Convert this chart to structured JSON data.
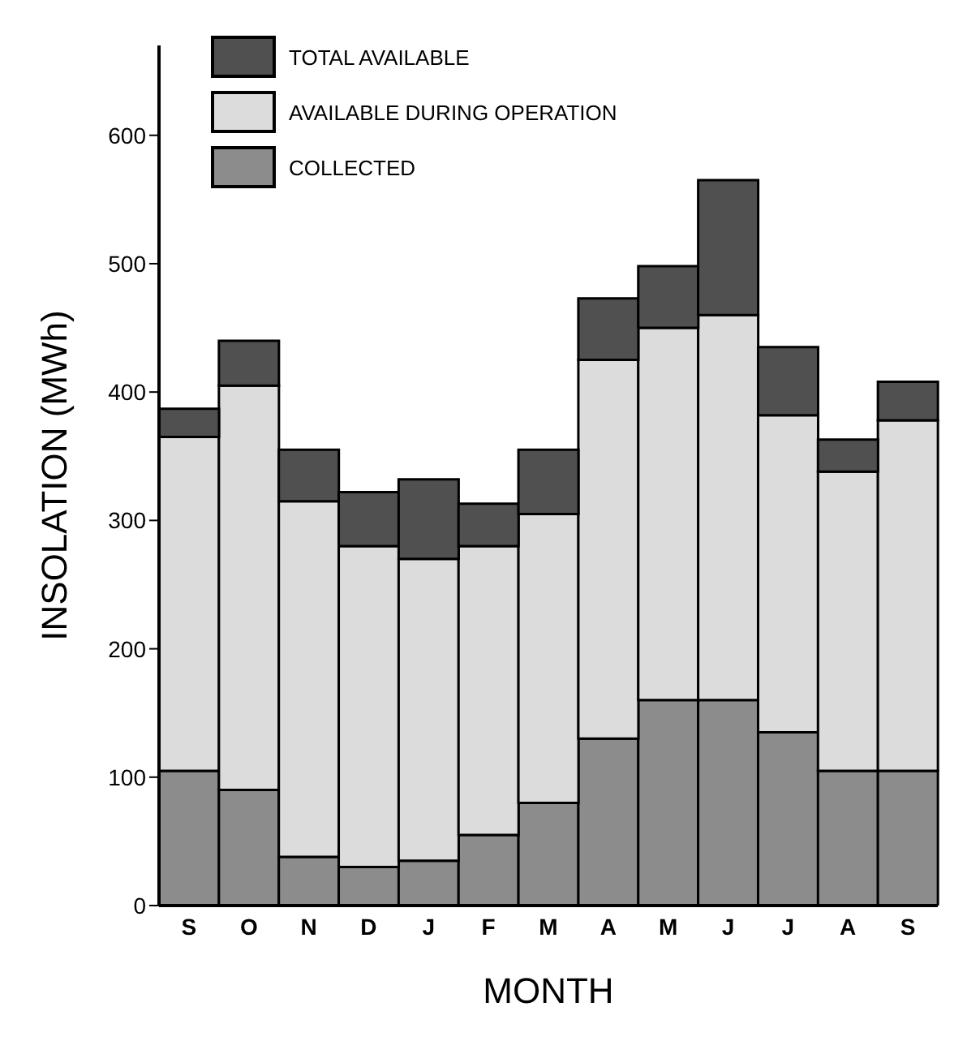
{
  "chart_data": {
    "type": "bar",
    "stacked": true,
    "xlabel": "MONTH",
    "ylabel": "INSOLATION (MWh)",
    "categories": [
      "S",
      "O",
      "N",
      "D",
      "J",
      "F",
      "M",
      "A",
      "M",
      "J",
      "J",
      "A",
      "S"
    ],
    "series": [
      {
        "name": "COLLECTED",
        "color": "#8c8c8c",
        "values": [
          105,
          90,
          38,
          30,
          35,
          55,
          80,
          130,
          160,
          160,
          135,
          105,
          105
        ]
      },
      {
        "name": "AVAILABLE DURING OPERATION",
        "color": "#dcdcdc",
        "values": [
          260,
          315,
          277,
          250,
          235,
          225,
          225,
          295,
          290,
          300,
          247,
          233,
          273
        ]
      },
      {
        "name": "TOTAL AVAILABLE",
        "color": "#505050",
        "values": [
          22,
          35,
          40,
          42,
          62,
          33,
          50,
          48,
          48,
          105,
          53,
          25,
          30
        ]
      }
    ],
    "ylim": [
      0,
      670
    ],
    "yticks": [
      0,
      100,
      200,
      300,
      400,
      500,
      600
    ],
    "grid": false,
    "legend": "top left"
  }
}
